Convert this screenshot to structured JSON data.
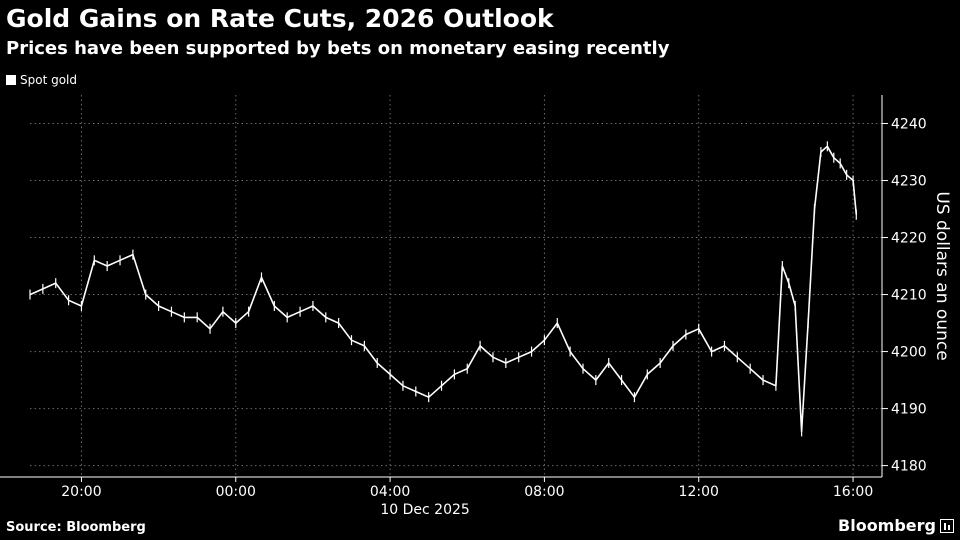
{
  "header": {
    "title": "Gold Gains on Rate Cuts, 2026 Outlook",
    "subtitle": "Prices have been supported by bets on monetary easing recently"
  },
  "footer": {
    "source": "Source: Bloomberg",
    "brand": "Bloomberg"
  },
  "colors": {
    "background": "#000000",
    "series": "#ffffff",
    "grid": "#777777"
  },
  "chart_data": {
    "type": "line",
    "style": "ohlc-ticks",
    "title": "Gold Gains on Rate Cuts, 2026 Outlook",
    "subtitle": "Prices have been supported by bets on monetary easing recently",
    "ylabel": "US dollars an ounce",
    "xlabel": "",
    "date_label": "10 Dec 2025",
    "yaxis_side": "right",
    "ylim": [
      4178,
      4245
    ],
    "yticks": [
      4180,
      4190,
      4200,
      4210,
      4220,
      4230,
      4240
    ],
    "xlim": [
      "18:40",
      "16:45"
    ],
    "xticks": [
      {
        "t": "20:00",
        "label": "20:00"
      },
      {
        "t": "00:00",
        "label": "00:00"
      },
      {
        "t": "04:00",
        "label": "04:00"
      },
      {
        "t": "08:00",
        "label": "08:00"
      },
      {
        "t": "12:00",
        "label": "12:00"
      },
      {
        "t": "16:00",
        "label": "16:00"
      }
    ],
    "grid": true,
    "legend": "top-left",
    "series": [
      {
        "name": "Spot gold",
        "x": [
          "18:40",
          "19:00",
          "19:20",
          "19:40",
          "20:00",
          "20:20",
          "20:40",
          "21:00",
          "21:20",
          "21:40",
          "22:00",
          "22:20",
          "22:40",
          "23:00",
          "23:20",
          "23:40",
          "00:00",
          "00:20",
          "00:40",
          "01:00",
          "01:20",
          "01:40",
          "02:00",
          "02:20",
          "02:40",
          "03:00",
          "03:20",
          "03:40",
          "04:00",
          "04:20",
          "04:40",
          "05:00",
          "05:20",
          "05:40",
          "06:00",
          "06:20",
          "06:40",
          "07:00",
          "07:20",
          "07:40",
          "08:00",
          "08:20",
          "08:40",
          "09:00",
          "09:20",
          "09:40",
          "10:00",
          "10:20",
          "10:40",
          "11:00",
          "11:20",
          "11:40",
          "12:00",
          "12:20",
          "12:40",
          "13:00",
          "13:20",
          "13:40",
          "14:00",
          "14:10",
          "14:20",
          "14:30",
          "14:40",
          "14:50",
          "15:00",
          "15:10",
          "15:20",
          "15:30",
          "15:40",
          "15:50",
          "16:00",
          "16:05"
        ],
        "values": [
          4210,
          4211,
          4212,
          4209,
          4208,
          4216,
          4215,
          4216,
          4217,
          4210,
          4208,
          4207,
          4206,
          4206,
          4204,
          4207,
          4205,
          4207,
          4213,
          4208,
          4206,
          4207,
          4208,
          4206,
          4205,
          4202,
          4201,
          4198,
          4196,
          4194,
          4193,
          4192,
          4194,
          4196,
          4197,
          4201,
          4199,
          4198,
          4199,
          4200,
          4202,
          4205,
          4200,
          4197,
          4195,
          4198,
          4195,
          4192,
          4196,
          4198,
          4201,
          4203,
          4204,
          4200,
          4201,
          4199,
          4197,
          4195,
          4194,
          4215,
          4212,
          4208,
          4186,
          4205,
          4225,
          4235,
          4236,
          4234,
          4233,
          4231,
          4230,
          4224
        ]
      }
    ]
  }
}
